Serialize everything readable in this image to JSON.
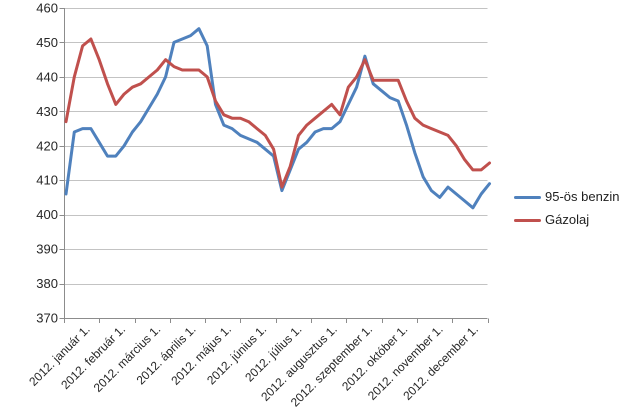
{
  "chart_data": {
    "type": "line",
    "title": "",
    "xlabel": "",
    "ylabel": "",
    "grid": "horizontal",
    "legend_position": "right",
    "x_axis": {
      "month_labels": [
        "2012. január 1.",
        "2012. február 1.",
        "2012. március 1.",
        "2012. április 1.",
        "2012. május 1.",
        "2012. június 1.",
        "2012. július 1.",
        "2012. augusztus 1.",
        "2012. szeptember 1.",
        "2012. október 1.",
        "2012. november 1.",
        "2012. december 1."
      ],
      "points_per_year": 52
    },
    "y_axis": {
      "min": 370,
      "max": 460,
      "step": 10,
      "tick_labels": [
        "370",
        "380",
        "390",
        "400",
        "410",
        "420",
        "430",
        "440",
        "450",
        "460"
      ]
    },
    "series": [
      {
        "name": "95-ös benzin",
        "color": "#4F81BD",
        "values": [
          406,
          424,
          425,
          425,
          421,
          417,
          417,
          420,
          424,
          427,
          431,
          435,
          440,
          450,
          451,
          452,
          454,
          449,
          432,
          426,
          425,
          423,
          422,
          421,
          419,
          417,
          407,
          413,
          419,
          421,
          424,
          425,
          425,
          427,
          432,
          437,
          446,
          438,
          436,
          434,
          433,
          426,
          418,
          411,
          407,
          405,
          408,
          406,
          404,
          402,
          406,
          409
        ]
      },
      {
        "name": "Gázolaj",
        "color": "#C0504D",
        "values": [
          427,
          440,
          449,
          451,
          445,
          438,
          432,
          435,
          437,
          438,
          440,
          442,
          445,
          443,
          442,
          442,
          442,
          440,
          433,
          429,
          428,
          428,
          427,
          425,
          423,
          419,
          408,
          414,
          423,
          426,
          428,
          430,
          432,
          429,
          437,
          440,
          445,
          439,
          439,
          439,
          439,
          433,
          428,
          426,
          425,
          424,
          423,
          420,
          416,
          413,
          413,
          415
        ]
      }
    ]
  },
  "colors": {
    "background": "#FFFFFF",
    "gridline": "#C3C3C3",
    "axis": "#8C8C8C",
    "tick_label": "#262626"
  }
}
